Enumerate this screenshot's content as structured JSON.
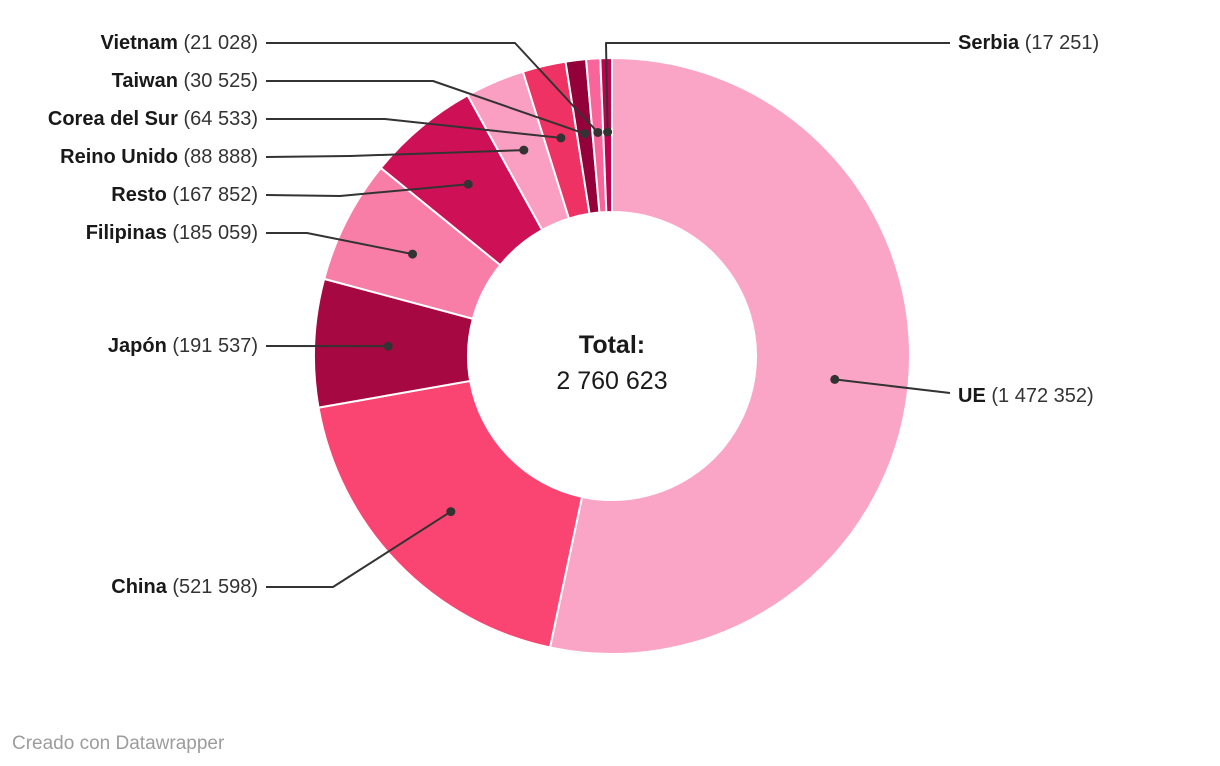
{
  "chart_data": {
    "type": "pie",
    "donut": true,
    "title": "",
    "legend_position": "callout-labels",
    "center_label": {
      "title": "Total:",
      "value": "2 760 623"
    },
    "total": 2760623,
    "segments": [
      {
        "label": "UE",
        "value": 1472352,
        "value_label": "(1 472 352)",
        "color": "#FBA5C6",
        "side": "right"
      },
      {
        "label": "China",
        "value": 521598,
        "value_label": "(521 598)",
        "color": "#FA4573",
        "side": "left"
      },
      {
        "label": "Japón",
        "value": 191537,
        "value_label": "(191 537)",
        "color": "#A60842",
        "side": "left"
      },
      {
        "label": "Filipinas",
        "value": 185059,
        "value_label": "(185 059)",
        "color": "#F87EA8",
        "side": "left"
      },
      {
        "label": "Resto",
        "value": 167852,
        "value_label": "(167 852)",
        "color": "#CE1156",
        "side": "left"
      },
      {
        "label": "Reino Unido",
        "value": 88888,
        "value_label": "(88 888)",
        "color": "#FA9EC2",
        "side": "left"
      },
      {
        "label": "Corea del Sur",
        "value": 64533,
        "value_label": "(64 533)",
        "color": "#EE3263",
        "side": "left"
      },
      {
        "label": "Taiwan",
        "value": 30525,
        "value_label": "(30 525)",
        "color": "#94013A",
        "side": "left"
      },
      {
        "label": "Vietnam",
        "value": 21028,
        "value_label": "(21 028)",
        "color": "#F9659B",
        "side": "left"
      },
      {
        "label": "Serbia",
        "value": 17251,
        "value_label": "(17 251)",
        "color": "#C30050",
        "side": "right"
      }
    ],
    "colors": {
      "leader_line": "#333333",
      "slice_border": "#ffffff",
      "label_name": "#191919",
      "label_value": "#333333"
    }
  },
  "footer": {
    "credit": "Creado con Datawrapper"
  }
}
